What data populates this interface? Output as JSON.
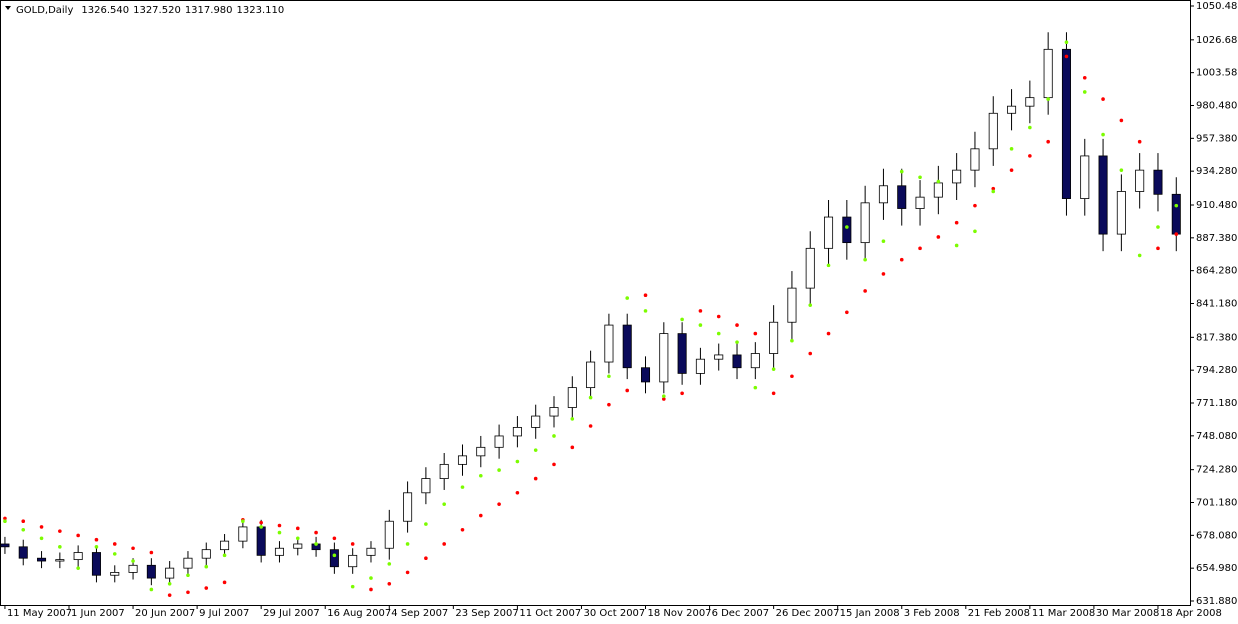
{
  "chart_data": {
    "type": "candlestick",
    "title": "GOLD,Daily",
    "header_values": [
      {
        "value": 1326.54,
        "label": "1326.540"
      },
      {
        "value": 1327.52,
        "label": "1327.520"
      },
      {
        "value": 1317.98,
        "label": "1317.980"
      },
      {
        "value": 1323.11,
        "label": "1323.110"
      }
    ],
    "up_color": "#ffffff",
    "down_color": "#0a0a5a",
    "wick_color": "#000000",
    "x": [
      0,
      1,
      2,
      3,
      4,
      5,
      6,
      7,
      8,
      9,
      10,
      11,
      12,
      13,
      14,
      15,
      16,
      17,
      18,
      19,
      20,
      21,
      22,
      23,
      24,
      25,
      26,
      27,
      28,
      29,
      30,
      31,
      32,
      33,
      34,
      35,
      36,
      37,
      38,
      39,
      40,
      41,
      42,
      43,
      44,
      45,
      46,
      47,
      48,
      49,
      50,
      51,
      52,
      53,
      54,
      55,
      56,
      57,
      58,
      59,
      60,
      61,
      62,
      63,
      64
    ],
    "open": [
      672,
      670,
      662,
      660,
      661,
      666,
      650,
      652,
      657,
      648,
      655,
      662,
      668,
      674,
      684,
      664,
      669,
      672,
      668,
      656,
      664,
      669,
      688,
      708,
      718,
      728,
      734,
      740,
      748,
      754,
      762,
      768,
      782,
      800,
      826,
      796,
      786,
      820,
      792,
      802,
      805,
      796,
      806,
      828,
      852,
      880,
      902,
      884,
      912,
      924,
      908,
      916,
      926,
      935,
      950,
      975,
      980,
      986,
      1020,
      915,
      945,
      890,
      920,
      935,
      918
    ],
    "high": [
      677,
      675,
      667,
      666,
      671,
      671,
      657,
      662,
      662,
      660,
      667,
      673,
      679,
      689,
      689,
      674,
      677,
      677,
      673,
      669,
      674,
      696,
      716,
      726,
      736,
      742,
      748,
      756,
      762,
      770,
      776,
      790,
      808,
      834,
      834,
      804,
      828,
      828,
      810,
      813,
      813,
      814,
      840,
      864,
      892,
      914,
      914,
      924,
      936,
      936,
      928,
      938,
      947,
      962,
      987,
      992,
      998,
      1032,
      1032,
      957,
      957,
      932,
      947,
      947,
      930
    ],
    "low": [
      665,
      657,
      655,
      655,
      656,
      645,
      645,
      647,
      643,
      643,
      650,
      657,
      663,
      669,
      659,
      659,
      664,
      663,
      651,
      651,
      659,
      661,
      680,
      700,
      710,
      720,
      726,
      732,
      740,
      746,
      754,
      760,
      774,
      792,
      788,
      778,
      778,
      784,
      784,
      794,
      788,
      788,
      794,
      816,
      840,
      868,
      872,
      872,
      900,
      896,
      896,
      904,
      914,
      923,
      938,
      963,
      968,
      974,
      903,
      903,
      878,
      878,
      908,
      906,
      878
    ],
    "close": [
      670,
      662,
      660,
      661,
      666,
      650,
      652,
      657,
      648,
      655,
      662,
      668,
      674,
      684,
      664,
      669,
      672,
      668,
      656,
      664,
      669,
      688,
      708,
      718,
      728,
      734,
      740,
      748,
      754,
      762,
      768,
      782,
      800,
      826,
      796,
      786,
      820,
      792,
      802,
      805,
      796,
      806,
      828,
      852,
      880,
      902,
      884,
      912,
      924,
      908,
      916,
      926,
      935,
      950,
      975,
      980,
      986,
      1020,
      915,
      945,
      890,
      920,
      935,
      918,
      890
    ],
    "indicators": [
      {
        "color": "#ff0000",
        "values": [
          690,
          688,
          684,
          681,
          678,
          675,
          672,
          669,
          666,
          636,
          638,
          641,
          645,
          689,
          687,
          685,
          683,
          680,
          676,
          672,
          640,
          644,
          652,
          662,
          672,
          682,
          692,
          700,
          708,
          718,
          728,
          740,
          755,
          770,
          780,
          847,
          774,
          778,
          836,
          832,
          826,
          820,
          778,
          790,
          806,
          820,
          835,
          850,
          862,
          872,
          880,
          888,
          898,
          910,
          922,
          935,
          945,
          955,
          1015,
          1000,
          985,
          970,
          955,
          880,
          890
        ]
      },
      {
        "color": "#7cfc00",
        "values": [
          688,
          682,
          676,
          670,
          655,
          670,
          665,
          660,
          640,
          644,
          650,
          656,
          664,
          688,
          684,
          680,
          676,
          672,
          664,
          642,
          648,
          658,
          672,
          686,
          700,
          712,
          720,
          724,
          730,
          738,
          748,
          760,
          775,
          790,
          845,
          836,
          776,
          830,
          826,
          820,
          814,
          782,
          795,
          815,
          840,
          868,
          895,
          872,
          885,
          934,
          930,
          927,
          882,
          892,
          920,
          950,
          965,
          985,
          1025,
          990,
          960,
          935,
          875,
          895,
          910
        ]
      }
    ],
    "xlim": [
      -0.27,
      64.75
    ],
    "xticks": [
      {
        "value": 0,
        "label": "11 May 2007"
      },
      {
        "value": 3.5,
        "label": "1 Jun 2007"
      },
      {
        "value": 7,
        "label": "20 Jun 2007"
      },
      {
        "value": 10.5,
        "label": "9 Jul 2007"
      },
      {
        "value": 14,
        "label": "29 Jul 2007"
      },
      {
        "value": 17.5,
        "label": "16 Aug 2007"
      },
      {
        "value": 21,
        "label": "4 Sep 2007"
      },
      {
        "value": 24.5,
        "label": "23 Sep 2007"
      },
      {
        "value": 28,
        "label": "11 Oct 2007"
      },
      {
        "value": 31.5,
        "label": "30 Oct 2007"
      },
      {
        "value": 35,
        "label": "18 Nov 2007"
      },
      {
        "value": 38.5,
        "label": "6 Dec 2007"
      },
      {
        "value": 42,
        "label": "26 Dec 2007"
      },
      {
        "value": 45.5,
        "label": "15 Jan 2008"
      },
      {
        "value": 49,
        "label": "3 Feb 2008"
      },
      {
        "value": 52.5,
        "label": "21 Feb 2008"
      },
      {
        "value": 56,
        "label": "11 Mar 2008"
      },
      {
        "value": 59.5,
        "label": "30 Mar 2008"
      },
      {
        "value": 63,
        "label": "18 Apr 2008"
      }
    ],
    "ylim": [
      629.07,
      1054.7
    ],
    "yticks": [
      {
        "value": 631.88,
        "label": "631.880"
      },
      {
        "value": 654.98,
        "label": "654.980"
      },
      {
        "value": 678.08,
        "label": "678.080"
      },
      {
        "value": 701.18,
        "label": "701.180"
      },
      {
        "value": 724.28,
        "label": "724.280"
      },
      {
        "value": 748.08,
        "label": "748.080"
      },
      {
        "value": 771.18,
        "label": "771.180"
      },
      {
        "value": 794.28,
        "label": "794.280"
      },
      {
        "value": 817.38,
        "label": "817.380"
      },
      {
        "value": 841.18,
        "label": "841.180"
      },
      {
        "value": 864.28,
        "label": "864.280"
      },
      {
        "value": 887.38,
        "label": "887.380"
      },
      {
        "value": 910.48,
        "label": "910.480"
      },
      {
        "value": 934.28,
        "label": "934.280"
      },
      {
        "value": 957.38,
        "label": "957.380"
      },
      {
        "value": 980.48,
        "label": "980.480"
      },
      {
        "value": 1003.58,
        "label": "1003.580"
      },
      {
        "value": 1026.68,
        "label": "1026.680"
      },
      {
        "value": 1050.48,
        "label": "1050.480"
      }
    ]
  }
}
